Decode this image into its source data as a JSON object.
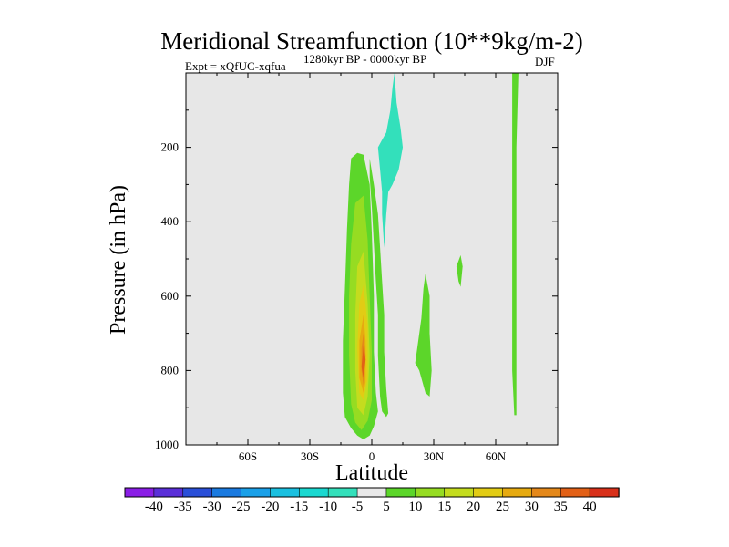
{
  "chart_data": {
    "type": "contour",
    "title": "Meridional Streamfunction (10**9kg/m-2)",
    "experiment": "Expt = xQfUC-xqfua",
    "period": "1280kyr BP - 0000kyr BP",
    "season": "DJF",
    "xlabel": "Latitude",
    "ylabel": "Pressure (in hPa)",
    "xlim": [
      -90,
      90
    ],
    "ylim": [
      1000,
      0
    ],
    "x_ticks": [
      {
        "value": -60,
        "label": "60S"
      },
      {
        "value": -30,
        "label": "30S"
      },
      {
        "value": 0,
        "label": "0"
      },
      {
        "value": 30,
        "label": "30N"
      },
      {
        "value": 60,
        "label": "60N"
      }
    ],
    "y_ticks": [
      {
        "value": 200,
        "label": "200"
      },
      {
        "value": 400,
        "label": "400"
      },
      {
        "value": 600,
        "label": "600"
      },
      {
        "value": 800,
        "label": "800"
      },
      {
        "value": 1000,
        "label": "1000"
      }
    ],
    "colorbar": {
      "levels": [
        -40,
        -35,
        -30,
        -25,
        -20,
        -15,
        -10,
        -5,
        5,
        10,
        15,
        20,
        25,
        30,
        35,
        40
      ],
      "labels": [
        "-40",
        "-35",
        "-30",
        "-25",
        "-20",
        "-15",
        "-10",
        "-5",
        "5",
        "10",
        "15",
        "20",
        "25",
        "30",
        "35",
        "40"
      ],
      "colors": [
        "#8a1ee6",
        "#5a2fd8",
        "#2a4fd8",
        "#1a7ae0",
        "#1aa0e8",
        "#1ac0e0",
        "#1ad8d0",
        "#33e0bb",
        "#e8e8e8",
        "#5cd62a",
        "#96dc22",
        "#c4dc1e",
        "#e2cc14",
        "#e6aa10",
        "#e4881a",
        "#e26016",
        "#d8301a"
      ]
    },
    "regions": [
      {
        "name": "positive-cell-5",
        "level": 5,
        "outline": [
          [
            -4,
            220
          ],
          [
            -1,
            300
          ],
          [
            0,
            430
          ],
          [
            1,
            600
          ],
          [
            1,
            750
          ],
          [
            2,
            860
          ],
          [
            3,
            910
          ],
          [
            1,
            950
          ],
          [
            -1,
            975
          ],
          [
            -4,
            985
          ],
          [
            -7,
            975
          ],
          [
            -10,
            955
          ],
          [
            -13,
            925
          ],
          [
            -14,
            860
          ],
          [
            -14,
            720
          ],
          [
            -13,
            580
          ],
          [
            -12,
            420
          ],
          [
            -11,
            300
          ],
          [
            -10,
            230
          ],
          [
            -7,
            215
          ]
        ]
      },
      {
        "name": "positive-cell-10",
        "level": 10,
        "outline": [
          [
            -4,
            330
          ],
          [
            -2,
            450
          ],
          [
            -1,
            600
          ],
          [
            0,
            750
          ],
          [
            0,
            880
          ],
          [
            -2,
            935
          ],
          [
            -5,
            960
          ],
          [
            -8,
            940
          ],
          [
            -10,
            890
          ],
          [
            -11,
            760
          ],
          [
            -11,
            600
          ],
          [
            -10,
            460
          ],
          [
            -8,
            350
          ]
        ]
      },
      {
        "name": "positive-cell-15",
        "level": 15,
        "outline": [
          [
            -4,
            480
          ],
          [
            -2,
            620
          ],
          [
            -1,
            760
          ],
          [
            -2,
            870
          ],
          [
            -4,
            920
          ],
          [
            -7,
            900
          ],
          [
            -8,
            800
          ],
          [
            -8,
            650
          ],
          [
            -7,
            520
          ]
        ]
      },
      {
        "name": "positive-cell-20",
        "level": 20,
        "outline": [
          [
            -4,
            570
          ],
          [
            -2,
            680
          ],
          [
            -2,
            820
          ],
          [
            -4,
            880
          ],
          [
            -6,
            860
          ],
          [
            -7,
            740
          ],
          [
            -6,
            620
          ]
        ]
      },
      {
        "name": "positive-cell-25",
        "level": 25,
        "outline": [
          [
            -4,
            650
          ],
          [
            -3,
            720
          ],
          [
            -3,
            830
          ],
          [
            -4,
            860
          ],
          [
            -6,
            820
          ],
          [
            -6,
            720
          ]
        ]
      },
      {
        "name": "positive-cell-30",
        "level": 30,
        "outline": [
          [
            -4,
            700
          ],
          [
            -3,
            760
          ],
          [
            -4,
            840
          ],
          [
            -5,
            800
          ],
          [
            -5,
            740
          ]
        ]
      },
      {
        "name": "positive-cell-35",
        "level": 35,
        "outline": [
          [
            -4,
            735
          ],
          [
            -3,
            770
          ],
          [
            -4,
            820
          ],
          [
            -5,
            790
          ]
        ]
      },
      {
        "name": "upper-branch-5",
        "level": 5,
        "outline": [
          [
            -1,
            230
          ],
          [
            1,
            300
          ],
          [
            3,
            380
          ],
          [
            4,
            470
          ],
          [
            5,
            560
          ],
          [
            6,
            650
          ],
          [
            6,
            750
          ],
          [
            7,
            850
          ],
          [
            8,
            915
          ],
          [
            7,
            925
          ],
          [
            5,
            910
          ],
          [
            4,
            870
          ],
          [
            3,
            760
          ],
          [
            3,
            650
          ],
          [
            2,
            560
          ],
          [
            1,
            460
          ],
          [
            0,
            360
          ],
          [
            -1,
            280
          ]
        ]
      },
      {
        "name": "northern-cell-a",
        "level": 5,
        "outline": [
          [
            26,
            540
          ],
          [
            28,
            600
          ],
          [
            28,
            700
          ],
          [
            29,
            800
          ],
          [
            28,
            870
          ],
          [
            26,
            860
          ],
          [
            23,
            800
          ],
          [
            21,
            780
          ],
          [
            22,
            740
          ],
          [
            24,
            660
          ],
          [
            25,
            580
          ]
        ]
      },
      {
        "name": "northern-cell-b",
        "level": 5,
        "outline": [
          [
            43,
            490
          ],
          [
            44,
            520
          ],
          [
            43,
            575
          ],
          [
            42,
            560
          ],
          [
            41,
            520
          ]
        ]
      },
      {
        "name": "polar-column",
        "level": 5,
        "outline": [
          [
            68,
            0
          ],
          [
            71,
            0
          ],
          [
            70,
            200
          ],
          [
            70,
            500
          ],
          [
            70,
            800
          ],
          [
            70,
            920
          ],
          [
            69,
            920
          ],
          [
            68,
            800
          ],
          [
            68,
            500
          ],
          [
            68,
            200
          ]
        ]
      },
      {
        "name": "upper-tropical-band",
        "level": -5,
        "outline": [
          [
            11,
            0
          ],
          [
            12,
            80
          ],
          [
            14,
            150
          ],
          [
            15,
            200
          ],
          [
            13,
            260
          ],
          [
            10,
            300
          ],
          [
            8,
            320
          ],
          [
            7,
            380
          ],
          [
            6,
            470
          ],
          [
            5,
            380
          ],
          [
            5,
            320
          ],
          [
            4,
            260
          ],
          [
            3,
            200
          ],
          [
            5,
            180
          ],
          [
            7,
            160
          ],
          [
            9,
            100
          ],
          [
            10,
            40
          ]
        ]
      }
    ]
  }
}
